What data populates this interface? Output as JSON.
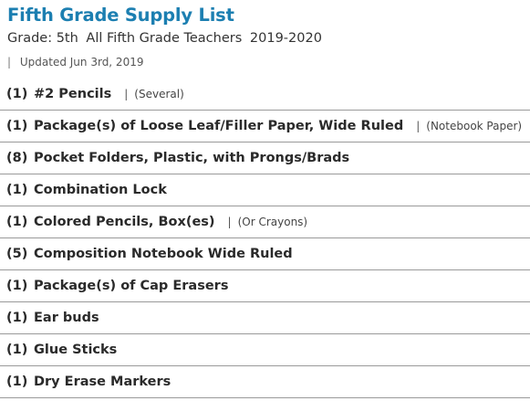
{
  "header": {
    "title": "Fifth Grade Supply List",
    "grade": "Grade: 5th",
    "teachers": "All Fifth Grade Teachers",
    "year": "2019-2020",
    "separator": "|",
    "updated": "Updated Jun 3rd, 2019"
  },
  "items": [
    {
      "qty": "(1)",
      "name": "#2 Pencils",
      "note": "(Several)"
    },
    {
      "qty": "(1)",
      "name": "Package(s) of Loose Leaf/Filler Paper, Wide Ruled",
      "note": "(Notebook Paper)"
    },
    {
      "qty": "(8)",
      "name": "Pocket Folders, Plastic, with Prongs/Brads",
      "note": ""
    },
    {
      "qty": "(1)",
      "name": "Combination Lock",
      "note": ""
    },
    {
      "qty": "(1)",
      "name": "Colored Pencils, Box(es)",
      "note": "(Or Crayons)"
    },
    {
      "qty": "(5)",
      "name": "Composition Notebook Wide Ruled",
      "note": ""
    },
    {
      "qty": "(1)",
      "name": "Package(s) of Cap Erasers",
      "note": ""
    },
    {
      "qty": "(1)",
      "name": "Ear buds",
      "note": ""
    },
    {
      "qty": "(1)",
      "name": "Glue Sticks",
      "note": ""
    },
    {
      "qty": "(1)",
      "name": "Dry Erase Markers",
      "note": ""
    }
  ],
  "colors": {
    "title": "#1c7fb1",
    "divider": "#9a9a9a"
  }
}
